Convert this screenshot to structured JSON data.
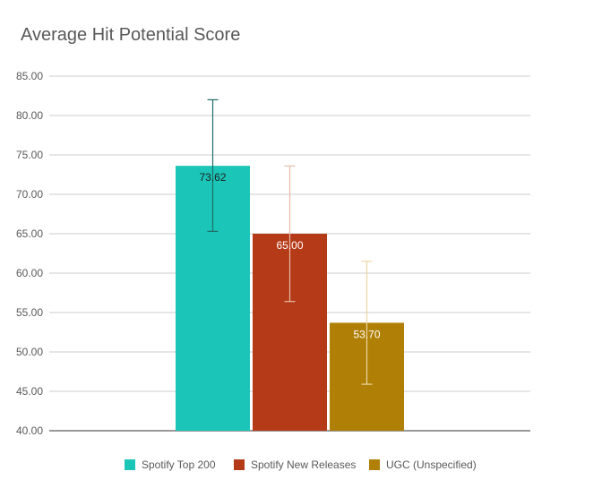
{
  "chart_data": {
    "type": "bar",
    "title": "Average Hit Potential Score",
    "xlabel": "",
    "ylabel": "",
    "ylim": [
      40,
      85
    ],
    "y_ticks": [
      "40.00",
      "45.00",
      "50.00",
      "55.00",
      "60.00",
      "65.00",
      "70.00",
      "75.00",
      "80.00",
      "85.00"
    ],
    "grid": true,
    "legend_position": "bottom",
    "series": [
      {
        "name": "Spotify Top 200",
        "value": 73.62,
        "label": "73.62",
        "error_low": 65.3,
        "error_high": 82.0,
        "color": "#1bc6b8",
        "error_color": "#1f6e68",
        "label_color": "#202020"
      },
      {
        "name": "Spotify New Releases",
        "value": 65.0,
        "label": "65.00",
        "error_low": 56.4,
        "error_high": 73.6,
        "color": "#b53a18",
        "error_color": "#e5bca7",
        "label_color": "#ffffff"
      },
      {
        "name": "UGC (Unspecified)",
        "value": 53.7,
        "label": "53.70",
        "error_low": 45.9,
        "error_high": 61.5,
        "color": "#b08006",
        "error_color": "#ecd7a4",
        "label_color": "#ffffff"
      }
    ]
  }
}
